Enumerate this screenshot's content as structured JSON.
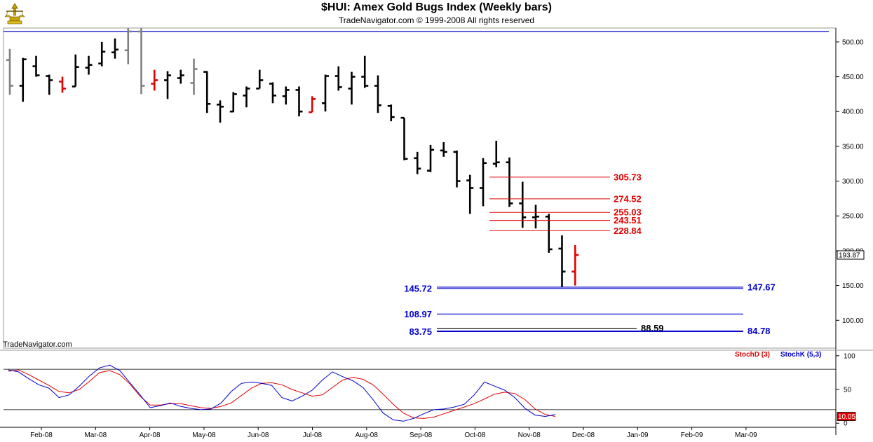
{
  "header": {
    "title": "$HUI:  Amex Gold Bugs Index  (Weekly bars)",
    "subtitle": "TradeNavigator.com © 1999-2008 All rights reserved"
  },
  "brand": "TradeNavigator.com",
  "colors": {
    "up": "#000000",
    "gray": "#808080",
    "red": "#e00000",
    "blue": "#0000cc",
    "price_flag_bg": "#ffffff",
    "stoch_flag_bg": "#e00000"
  },
  "chart_data": [
    {
      "type": "ohlc",
      "ylim": [
        60,
        520
      ],
      "yticks": [
        100,
        150,
        200,
        250,
        300,
        350,
        400,
        450,
        500
      ],
      "ytick_labels": [
        "100.00",
        "150.00",
        "200.00",
        "250.00",
        "300.00",
        "350.00",
        "400.00",
        "450.00",
        "500.00"
      ],
      "x_months": [
        "Feb-08",
        "Mar-08",
        "Apr-08",
        "May-08",
        "Jun-08",
        "Jul-08",
        "Aug-08",
        "Sep-08",
        "Oct-08",
        "Nov-08",
        "Dec-08",
        "Jan-09",
        "Feb-09",
        "Mar-09"
      ],
      "current_price_label": "193.87",
      "bars": [
        {
          "o": 474,
          "h": 490,
          "l": 424,
          "c": 437,
          "color": "gray"
        },
        {
          "o": 437,
          "h": 477,
          "l": 414,
          "c": 475,
          "color": "black"
        },
        {
          "o": 465,
          "h": 480,
          "l": 450,
          "c": 452,
          "color": "black"
        },
        {
          "o": 451,
          "h": 453,
          "l": 424,
          "c": 445,
          "color": "black"
        },
        {
          "o": 443,
          "h": 450,
          "l": 427,
          "c": 433,
          "color": "red"
        },
        {
          "o": 436,
          "h": 482,
          "l": 436,
          "c": 464,
          "color": "black"
        },
        {
          "o": 463,
          "h": 480,
          "l": 453,
          "c": 467,
          "color": "black"
        },
        {
          "o": 469,
          "h": 500,
          "l": 465,
          "c": 486,
          "color": "black"
        },
        {
          "o": 485,
          "h": 505,
          "l": 476,
          "c": 489,
          "color": "black"
        },
        {
          "o": 488,
          "h": 520,
          "l": 468,
          "c": 515,
          "color": "gray"
        },
        {
          "o": 515,
          "h": 520,
          "l": 425,
          "c": 437,
          "color": "gray"
        },
        {
          "o": 440,
          "h": 460,
          "l": 430,
          "c": 445,
          "color": "red"
        },
        {
          "o": 445,
          "h": 458,
          "l": 418,
          "c": 452,
          "color": "black"
        },
        {
          "o": 448,
          "h": 460,
          "l": 440,
          "c": 452,
          "color": "black"
        },
        {
          "o": 441,
          "h": 476,
          "l": 424,
          "c": 461,
          "color": "gray"
        },
        {
          "o": 457,
          "h": 458,
          "l": 398,
          "c": 411,
          "color": "black"
        },
        {
          "o": 410,
          "h": 416,
          "l": 384,
          "c": 407,
          "color": "black"
        },
        {
          "o": 400,
          "h": 428,
          "l": 399,
          "c": 425,
          "color": "black"
        },
        {
          "o": 423,
          "h": 436,
          "l": 406,
          "c": 433,
          "color": "black"
        },
        {
          "o": 433,
          "h": 460,
          "l": 433,
          "c": 445,
          "color": "black"
        },
        {
          "o": 440,
          "h": 442,
          "l": 412,
          "c": 423,
          "color": "black"
        },
        {
          "o": 422,
          "h": 436,
          "l": 410,
          "c": 431,
          "color": "black"
        },
        {
          "o": 431,
          "h": 436,
          "l": 393,
          "c": 400,
          "color": "black"
        },
        {
          "o": 399,
          "h": 422,
          "l": 399,
          "c": 418,
          "color": "red"
        },
        {
          "o": 412,
          "h": 453,
          "l": 400,
          "c": 451,
          "color": "black"
        },
        {
          "o": 451,
          "h": 465,
          "l": 430,
          "c": 435,
          "color": "black"
        },
        {
          "o": 433,
          "h": 457,
          "l": 410,
          "c": 450,
          "color": "black"
        },
        {
          "o": 450,
          "h": 480,
          "l": 434,
          "c": 437,
          "color": "black"
        },
        {
          "o": 437,
          "h": 452,
          "l": 398,
          "c": 409,
          "color": "black"
        },
        {
          "o": 408,
          "h": 410,
          "l": 386,
          "c": 392,
          "color": "black"
        },
        {
          "o": 391,
          "h": 391,
          "l": 330,
          "c": 332,
          "color": "black"
        },
        {
          "o": 333,
          "h": 342,
          "l": 310,
          "c": 318,
          "color": "black"
        },
        {
          "o": 315,
          "h": 352,
          "l": 313,
          "c": 345,
          "color": "black"
        },
        {
          "o": 344,
          "h": 356,
          "l": 335,
          "c": 342,
          "color": "black"
        },
        {
          "o": 342,
          "h": 344,
          "l": 291,
          "c": 300,
          "color": "black"
        },
        {
          "o": 301,
          "h": 309,
          "l": 253,
          "c": 290,
          "color": "black"
        },
        {
          "o": 290,
          "h": 333,
          "l": 264,
          "c": 326,
          "color": "black"
        },
        {
          "o": 325,
          "h": 358,
          "l": 320,
          "c": 327,
          "color": "black"
        },
        {
          "o": 327,
          "h": 334,
          "l": 263,
          "c": 268,
          "color": "black"
        },
        {
          "o": 268,
          "h": 299,
          "l": 233,
          "c": 248,
          "color": "black"
        },
        {
          "o": 248,
          "h": 266,
          "l": 232,
          "c": 249,
          "color": "black"
        },
        {
          "o": 249,
          "h": 253,
          "l": 197,
          "c": 202,
          "color": "black"
        },
        {
          "o": 203,
          "h": 222,
          "l": 148,
          "c": 170,
          "color": "black"
        },
        {
          "o": 170,
          "h": 208,
          "l": 150,
          "c": 193.87,
          "color": "red"
        }
      ],
      "levels": [
        {
          "value": 305.73,
          "label": "305.73",
          "color": "red"
        },
        {
          "value": 274.52,
          "label": "274.52",
          "color": "red"
        },
        {
          "value": 255.03,
          "label": "255.03",
          "color": "red"
        },
        {
          "value": 243.51,
          "label": "243.51",
          "color": "red"
        },
        {
          "value": 228.84,
          "label": "228.84",
          "color": "red"
        },
        {
          "value": 145.72,
          "label": "145.72",
          "color": "blue",
          "side": "left"
        },
        {
          "value": 147.67,
          "label": "147.67",
          "color": "blue",
          "side": "right"
        },
        {
          "value": 108.97,
          "label": "108.97",
          "color": "blue",
          "side": "left"
        },
        {
          "value": 88.59,
          "label": "88.59",
          "color": "black",
          "side": "mid"
        },
        {
          "value": 83.75,
          "label": "83.75",
          "color": "blue",
          "side": "left"
        },
        {
          "value": 84.78,
          "label": "84.78",
          "color": "blue",
          "side": "right"
        }
      ],
      "top_line": 515
    },
    {
      "type": "line",
      "ylim": [
        -5,
        105
      ],
      "yticks": [
        0,
        50,
        100
      ],
      "ytick_labels": [
        "0",
        "50",
        "100"
      ],
      "hlines": [
        20,
        80
      ],
      "current_value_label": "10.05",
      "series": [
        {
          "name": "StochD (3)",
          "color": "red",
          "values": [
            77,
            79,
            72,
            64,
            56,
            47,
            45,
            50,
            62,
            75,
            78,
            72,
            58,
            40,
            27,
            27,
            29,
            29,
            26,
            23,
            22,
            25,
            30,
            41,
            52,
            59,
            60,
            57,
            50,
            45,
            40,
            42,
            53,
            64,
            68,
            65,
            57,
            43,
            28,
            15,
            8,
            7,
            9,
            14,
            19,
            24,
            29,
            36,
            43,
            46,
            44,
            35,
            21,
            13,
            10
          ]
        },
        {
          "name": "StochK (5,3)",
          "color": "blue",
          "values": [
            79,
            76,
            66,
            57,
            52,
            38,
            42,
            55,
            70,
            82,
            86,
            78,
            60,
            42,
            23,
            26,
            30,
            25,
            22,
            20,
            21,
            30,
            47,
            59,
            61,
            59,
            56,
            38,
            33,
            40,
            49,
            64,
            76,
            69,
            63,
            53,
            35,
            15,
            5,
            3,
            7,
            14,
            20,
            21,
            24,
            28,
            42,
            61,
            55,
            49,
            38,
            22,
            12,
            10,
            13
          ]
        }
      ]
    }
  ],
  "legend": {
    "stochd": "StochD (3)",
    "stochk": "StochK (5,3)"
  }
}
